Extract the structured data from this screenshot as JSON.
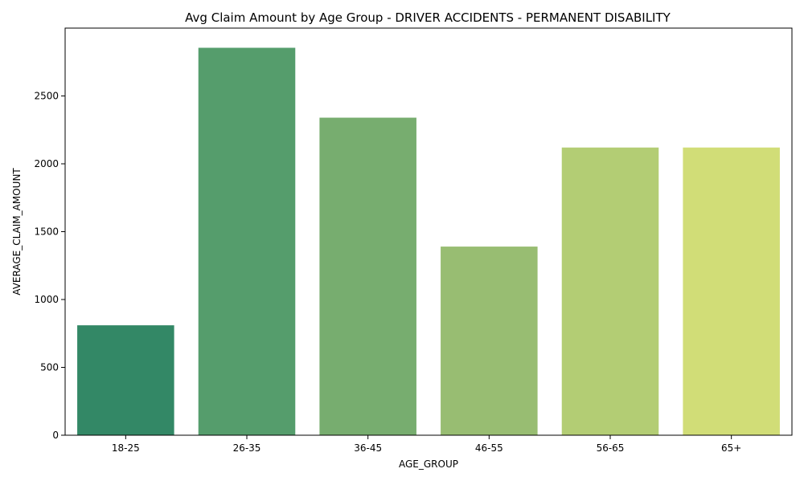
{
  "chart_data": {
    "type": "bar",
    "title": "Avg Claim Amount by Age Group - DRIVER ACCIDENTS - PERMANENT DISABILITY",
    "xlabel": "AGE_GROUP",
    "ylabel": "AVERAGE_CLAIM_AMOUNT",
    "categories": [
      "18-25",
      "26-35",
      "36-45",
      "46-55",
      "56-65",
      "65+"
    ],
    "values": [
      810,
      2855,
      2340,
      1390,
      2120,
      2120
    ],
    "colors": [
      "#338866",
      "#559d6c",
      "#77ad6f",
      "#98bd72",
      "#b3cd74",
      "#d1dd77"
    ],
    "ylim": [
      0,
      3000
    ],
    "yticks": [
      0,
      500,
      1000,
      1500,
      2000,
      2500
    ],
    "grid": false,
    "legend": "none"
  }
}
